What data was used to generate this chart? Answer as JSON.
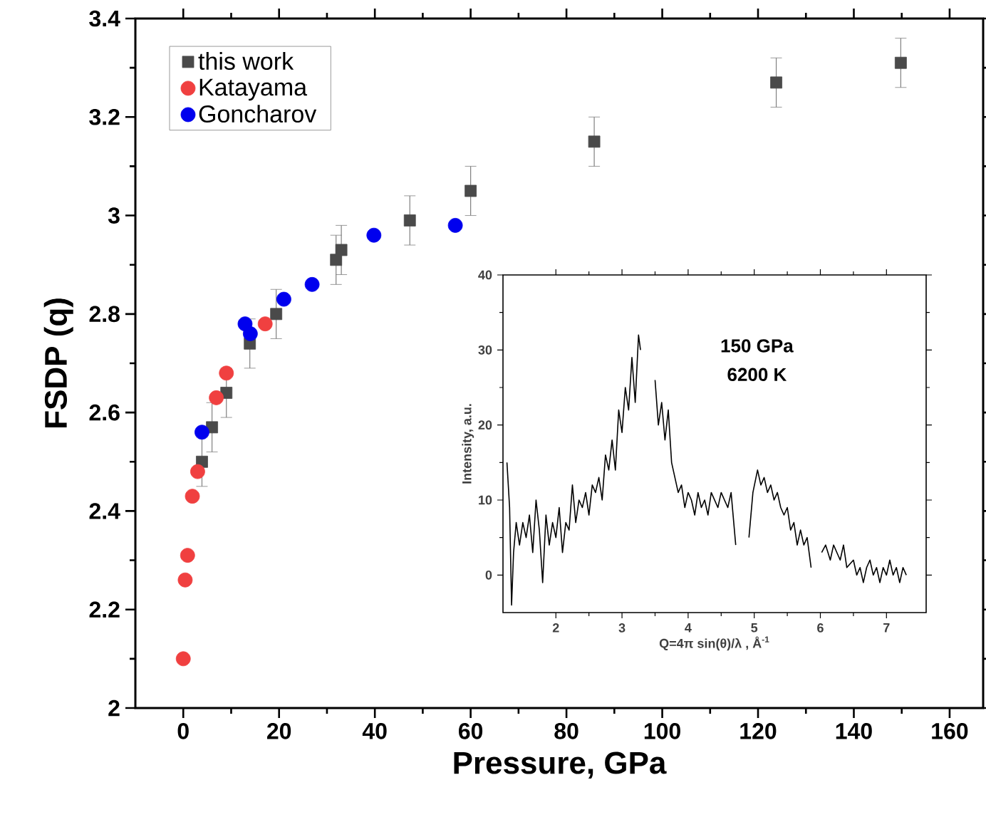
{
  "chart_data": [
    {
      "type": "scatter",
      "xlabel": "Pressure, GPa",
      "ylabel": "FSDP (q)",
      "xlim": [
        -10,
        167
      ],
      "ylim": [
        2,
        3.4
      ],
      "xticks": [
        0,
        20,
        40,
        60,
        80,
        100,
        120,
        140,
        160
      ],
      "yticks": [
        2,
        2.2,
        2.4,
        2.6,
        2.8,
        3,
        3.2,
        3.4
      ],
      "legend": "top left",
      "grid": false,
      "series": [
        {
          "name": "this work",
          "color": "#4a4a4a",
          "marker": "square",
          "x": [
            3.9,
            6.0,
            9.0,
            13.9,
            19.4,
            31.9,
            33.0,
            47.3,
            60,
            85.8,
            123.8,
            149.8
          ],
          "values": [
            2.5,
            2.57,
            2.64,
            2.74,
            2.8,
            2.91,
            2.93,
            2.99,
            3.05,
            3.15,
            3.27,
            3.31
          ],
          "errors": [
            0.05,
            0.05,
            0.05,
            0.05,
            0.05,
            0.05,
            0.05,
            0.05,
            0.05,
            0.05,
            0.05,
            0.05
          ]
        },
        {
          "name": "Katayama",
          "color": "#f04040",
          "marker": "circle",
          "x": [
            0,
            0.4,
            0.9,
            1.9,
            3.0,
            6.9,
            9.0,
            17.1
          ],
          "values": [
            2.1,
            2.26,
            2.31,
            2.43,
            2.48,
            2.63,
            2.68,
            2.78
          ]
        },
        {
          "name": "Goncharov",
          "color": "#0000ee",
          "marker": "circle",
          "x": [
            3.9,
            12.9,
            14.0,
            21.0,
            26.9,
            39.8,
            56.8
          ],
          "values": [
            2.56,
            2.78,
            2.76,
            2.83,
            2.86,
            2.96,
            2.98
          ]
        }
      ]
    },
    {
      "type": "line",
      "xlabel": "Q=4π sin(θ)/λ , Å$^{-1}$",
      "ylabel": "Intensity, a.u.",
      "xlim": [
        1.2,
        7.6
      ],
      "ylim": [
        -5,
        40
      ],
      "xticks": [
        2,
        3,
        4,
        5,
        6,
        7
      ],
      "yticks": [
        0,
        10,
        20,
        30,
        40
      ],
      "annotations": [
        "150 GPa",
        "6200 K"
      ],
      "grid": false,
      "marker": "none",
      "series": [
        {
          "color": "#000000",
          "x": [
            1.26,
            1.3,
            1.33,
            1.36,
            1.4,
            1.45,
            1.5,
            1.55,
            1.6,
            1.65,
            1.7,
            1.75,
            1.8,
            1.85,
            1.9,
            1.95,
            2.0,
            2.05,
            2.1,
            2.15,
            2.2,
            2.25,
            2.3,
            2.35,
            2.4,
            2.45,
            2.5,
            2.55,
            2.6,
            2.65,
            2.7,
            2.75,
            2.8,
            2.85,
            2.9,
            2.95,
            3.0,
            3.05,
            3.1,
            3.15,
            3.2,
            3.25,
            3.28,
            3.31,
            3.35,
            3.38,
            3.45,
            3.5,
            3.55,
            3.6,
            3.65,
            3.7,
            3.75,
            3.8,
            3.85,
            3.9,
            3.95,
            4.0,
            4.05,
            4.1,
            4.15,
            4.2,
            4.25,
            4.3,
            4.35,
            4.4,
            4.45,
            4.5,
            4.55,
            4.6,
            4.65,
            4.72,
            4.78,
            4.86,
            4.92,
            4.98,
            5.05,
            5.1,
            5.15,
            5.2,
            5.25,
            5.3,
            5.35,
            5.4,
            5.45,
            5.5,
            5.55,
            5.6,
            5.65,
            5.7,
            5.75,
            5.8,
            5.86,
            5.9,
            5.97,
            6.02,
            6.08,
            6.15,
            6.2,
            6.25,
            6.3,
            6.35,
            6.4,
            6.5,
            6.55,
            6.6,
            6.65,
            6.7,
            6.75,
            6.8,
            6.85,
            6.9,
            6.95,
            7.0,
            7.05,
            7.1,
            7.15,
            7.2,
            7.25,
            7.3
          ],
          "values": [
            15,
            9,
            -4,
            3,
            7,
            4,
            7,
            5,
            8,
            3,
            10,
            6,
            -1,
            8,
            4,
            7,
            5,
            9,
            3,
            7,
            6,
            12,
            7,
            10,
            9,
            11,
            8,
            12,
            11,
            13,
            10,
            16,
            14,
            18,
            14,
            22,
            19,
            25,
            22,
            29,
            23,
            32,
            30,
            null,
            null,
            null,
            null,
            26,
            20,
            23,
            18,
            22,
            15,
            13,
            11,
            12,
            9,
            11,
            10,
            8,
            11,
            9,
            10,
            8,
            11,
            10,
            9,
            11,
            10,
            9,
            11,
            4,
            null,
            null,
            5,
            11,
            14,
            12,
            13,
            11,
            12,
            10,
            11,
            9,
            8,
            9,
            6,
            7,
            4,
            6,
            4,
            5,
            1,
            null,
            null,
            3,
            4,
            2,
            4,
            3,
            2,
            4,
            1,
            2,
            0,
            1,
            -1,
            1,
            2,
            0,
            1,
            -1,
            1,
            0,
            2,
            0,
            1,
            -1,
            1,
            0
          ]
        }
      ]
    }
  ]
}
